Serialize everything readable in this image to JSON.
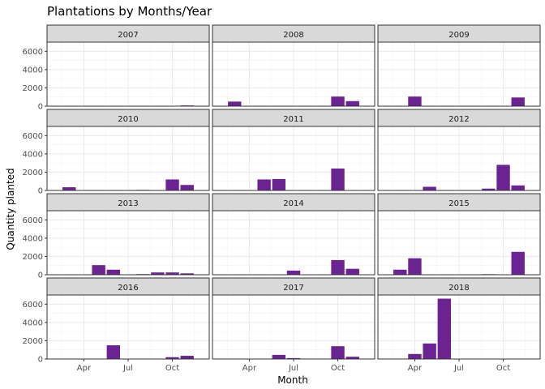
{
  "chart_data": {
    "type": "bar",
    "title": "Plantations by Months/Year",
    "xlabel": "Month",
    "ylabel": "Quantity planted",
    "ylim": [
      0,
      7000
    ],
    "y_ticks": [
      0,
      2000,
      4000,
      6000
    ],
    "y_tick_labels": [
      "0",
      "2000",
      "4000",
      "6000"
    ],
    "x_ticks": [
      4,
      7,
      10
    ],
    "x_tick_labels": [
      "Apr",
      "Jul",
      "Oct"
    ],
    "x_range": [
      1.5,
      12.5
    ],
    "facet_layout": "3 columns x 4 rows, shared axes",
    "grid": true,
    "bar_color": "#6a2391",
    "strip_color": "#d9d9d9",
    "panels": [
      {
        "year": "2007",
        "months": [
          11
        ],
        "values": [
          80
        ]
      },
      {
        "year": "2008",
        "months": [
          3,
          10,
          11
        ],
        "values": [
          500,
          1050,
          550
        ]
      },
      {
        "year": "2009",
        "months": [
          4,
          11
        ],
        "values": [
          1050,
          950
        ]
      },
      {
        "year": "2010",
        "months": [
          3,
          8,
          10,
          11
        ],
        "values": [
          350,
          60,
          1200,
          600
        ]
      },
      {
        "year": "2011",
        "months": [
          5,
          6,
          10
        ],
        "values": [
          1200,
          1250,
          2400
        ]
      },
      {
        "year": "2012",
        "months": [
          5,
          9,
          10,
          11
        ],
        "values": [
          400,
          200,
          2800,
          550
        ]
      },
      {
        "year": "2013",
        "months": [
          5,
          6,
          8,
          9,
          10,
          11
        ],
        "values": [
          1050,
          550,
          70,
          250,
          250,
          150
        ]
      },
      {
        "year": "2014",
        "months": [
          7,
          10,
          11
        ],
        "values": [
          450,
          1600,
          650
        ]
      },
      {
        "year": "2015",
        "months": [
          3,
          4,
          9,
          11
        ],
        "values": [
          550,
          1800,
          60,
          2500
        ]
      },
      {
        "year": "2016",
        "months": [
          6,
          10,
          11
        ],
        "values": [
          1500,
          200,
          350
        ]
      },
      {
        "year": "2017",
        "months": [
          6,
          7,
          10,
          11
        ],
        "values": [
          450,
          100,
          1400,
          250
        ]
      },
      {
        "year": "2018",
        "months": [
          4,
          5,
          6
        ],
        "values": [
          550,
          1700,
          6600
        ]
      }
    ]
  }
}
